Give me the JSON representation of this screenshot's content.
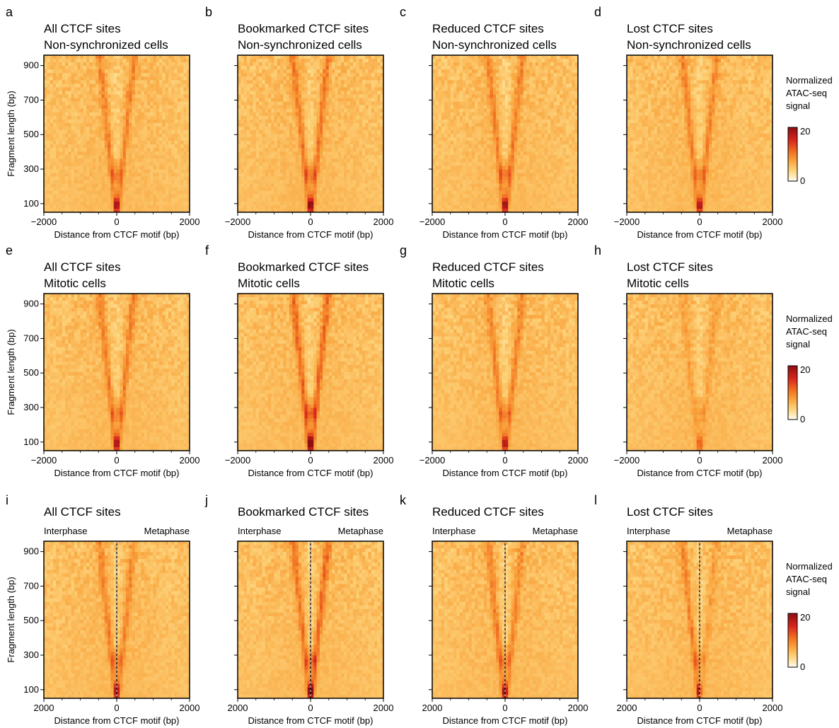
{
  "colorbar": {
    "title_lines": [
      "Normalized",
      "ATAC-seq",
      "signal"
    ],
    "max_label": "20",
    "min_label": "0",
    "colors": [
      "#ffffff",
      "#fff0c6",
      "#fdd279",
      "#f9a33c",
      "#ef6b20",
      "#d7261e",
      "#8e0d12"
    ]
  },
  "axis_labels": {
    "x": "Distance from CTCF motif (bp)",
    "y": "Fragment length (bp)"
  },
  "side_labels": {
    "left": "Interphase",
    "right": "Metaphase"
  },
  "chart_data": [
    {
      "panel": "a",
      "type": "heatmap",
      "title": [
        "All CTCF sites",
        "Non-synchronized cells"
      ],
      "xlabel": "Distance from CTCF motif (bp)",
      "ylabel": "Fragment length (bp)",
      "xlim": [
        -2000,
        2000
      ],
      "ylim": [
        50,
        960
      ],
      "x_ticks": [
        "−2000",
        "0",
        "2000"
      ],
      "y_ticks": [
        "100",
        "300",
        "500",
        "700",
        "900"
      ],
      "intensity": 1.0,
      "scale": [
        0,
        20
      ]
    },
    {
      "panel": "b",
      "type": "heatmap",
      "title": [
        "Bookmarked CTCF sites",
        "Non-synchronized cells"
      ],
      "xlabel": "Distance from CTCF motif (bp)",
      "ylabel": "",
      "xlim": [
        -2000,
        2000
      ],
      "ylim": [
        50,
        960
      ],
      "x_ticks": [
        "−2000",
        "0",
        "2000"
      ],
      "y_ticks": [],
      "intensity": 1.15,
      "scale": [
        0,
        20
      ]
    },
    {
      "panel": "c",
      "type": "heatmap",
      "title": [
        "Reduced CTCF sites",
        "Non-synchronized cells"
      ],
      "xlabel": "Distance from CTCF motif (bp)",
      "ylabel": "",
      "xlim": [
        -2000,
        2000
      ],
      "ylim": [
        50,
        960
      ],
      "x_ticks": [
        "−2000",
        "0",
        "2000"
      ],
      "y_ticks": [],
      "intensity": 1.05,
      "scale": [
        0,
        20
      ]
    },
    {
      "panel": "d",
      "type": "heatmap",
      "title": [
        "Lost CTCF sites",
        "Non-synchronized cells"
      ],
      "xlabel": "Distance from CTCF motif (bp)",
      "ylabel": "",
      "xlim": [
        -2000,
        2000
      ],
      "ylim": [
        50,
        960
      ],
      "x_ticks": [
        "−2000",
        "0",
        "2000"
      ],
      "y_ticks": [],
      "intensity": 0.95,
      "scale": [
        0,
        20
      ]
    },
    {
      "panel": "e",
      "type": "heatmap",
      "title": [
        "All CTCF sites",
        "Mitotic cells"
      ],
      "xlabel": "Distance from CTCF motif (bp)",
      "ylabel": "Fragment length (bp)",
      "xlim": [
        -2000,
        2000
      ],
      "ylim": [
        50,
        960
      ],
      "x_ticks": [
        "−2000",
        "0",
        "2000"
      ],
      "y_ticks": [
        "100",
        "300",
        "500",
        "700",
        "900"
      ],
      "intensity": 1.0,
      "scale": [
        0,
        20
      ]
    },
    {
      "panel": "f",
      "type": "heatmap",
      "title": [
        "Bookmarked CTCF sites",
        "Mitotic cells"
      ],
      "xlabel": "Distance from CTCF motif (bp)",
      "ylabel": "",
      "xlim": [
        -2000,
        2000
      ],
      "ylim": [
        50,
        960
      ],
      "x_ticks": [
        "−2000",
        "0",
        "2000"
      ],
      "y_ticks": [],
      "intensity": 1.45,
      "scale": [
        0,
        20
      ]
    },
    {
      "panel": "g",
      "type": "heatmap",
      "title": [
        "Reduced CTCF sites",
        "Mitotic cells"
      ],
      "xlabel": "Distance from CTCF motif (bp)",
      "ylabel": "",
      "xlim": [
        -2000,
        2000
      ],
      "ylim": [
        50,
        960
      ],
      "x_ticks": [
        "−2000",
        "0",
        "2000"
      ],
      "y_ticks": [],
      "intensity": 0.95,
      "scale": [
        0,
        20
      ]
    },
    {
      "panel": "h",
      "type": "heatmap",
      "title": [
        "Lost CTCF sites",
        "Mitotic cells"
      ],
      "xlabel": "Distance from CTCF motif (bp)",
      "ylabel": "",
      "xlim": [
        -2000,
        2000
      ],
      "ylim": [
        50,
        960
      ],
      "x_ticks": [
        "−2000",
        "0",
        "2000"
      ],
      "y_ticks": [],
      "intensity": 0.45,
      "scale": [
        0,
        20
      ]
    },
    {
      "panel": "i",
      "type": "heatmap",
      "title": [
        "All CTCF sites"
      ],
      "xlabel": "Distance from CTCF motif (bp)",
      "ylabel": "Fragment length (bp)",
      "xlim": [
        -2000,
        2000
      ],
      "ylim": [
        50,
        960
      ],
      "x_ticks": [
        "2000",
        "0",
        "2000"
      ],
      "y_ticks": [
        "100",
        "300",
        "500",
        "700",
        "900"
      ],
      "split": true,
      "intensity_left": 1.0,
      "intensity_right": 0.9,
      "scale": [
        0,
        20
      ]
    },
    {
      "panel": "j",
      "type": "heatmap",
      "title": [
        "Bookmarked CTCF sites"
      ],
      "xlabel": "Distance from CTCF motif (bp)",
      "ylabel": "",
      "xlim": [
        -2000,
        2000
      ],
      "ylim": [
        50,
        960
      ],
      "x_ticks": [
        "2000",
        "0",
        "2000"
      ],
      "y_ticks": [],
      "split": true,
      "intensity_left": 1.15,
      "intensity_right": 1.4,
      "scale": [
        0,
        20
      ]
    },
    {
      "panel": "k",
      "type": "heatmap",
      "title": [
        "Reduced CTCF sites"
      ],
      "xlabel": "Distance from CTCF motif (bp)",
      "ylabel": "",
      "xlim": [
        -2000,
        2000
      ],
      "ylim": [
        50,
        960
      ],
      "x_ticks": [
        "2000",
        "0",
        "2000"
      ],
      "y_ticks": [],
      "split": true,
      "intensity_left": 1.05,
      "intensity_right": 0.9,
      "scale": [
        0,
        20
      ]
    },
    {
      "panel": "l",
      "type": "heatmap",
      "title": [
        "Lost CTCF sites"
      ],
      "xlabel": "Distance from CTCF motif (bp)",
      "ylabel": "",
      "xlim": [
        -2000,
        2000
      ],
      "ylim": [
        50,
        960
      ],
      "x_ticks": [
        "2000",
        "0",
        "2000"
      ],
      "y_ticks": [],
      "split": true,
      "intensity_left": 0.95,
      "intensity_right": 0.45,
      "scale": [
        0,
        20
      ]
    }
  ]
}
